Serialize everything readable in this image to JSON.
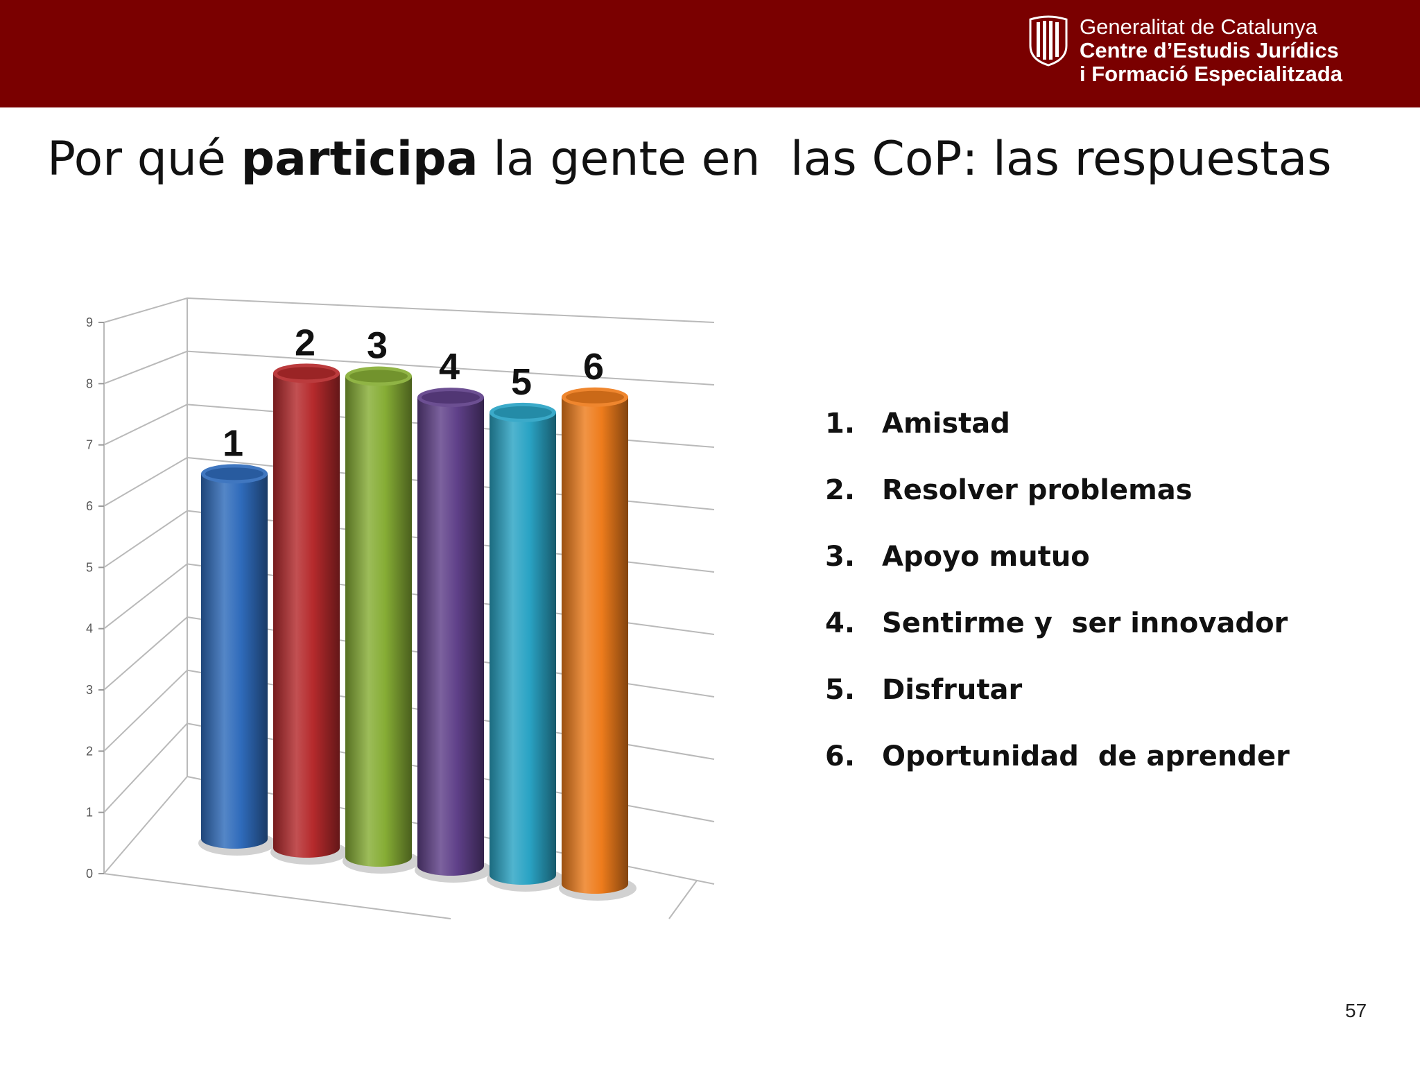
{
  "header": {
    "org_line1": "Generalitat de Catalunya",
    "org_line2": "Centre d’Estudis Jurídics",
    "org_line3": "i Formació Especialitzada",
    "header_color": "#7a0000"
  },
  "title": {
    "prefix": "Por qué ",
    "bold": "participa",
    "suffix": " la gente en  las CoP: las respuestas"
  },
  "chart_data": {
    "type": "bar",
    "style": "3d-cylinder",
    "categories": [
      "1",
      "2",
      "3",
      "4",
      "5",
      "6"
    ],
    "values": [
      6.0,
      7.8,
      7.9,
      7.7,
      7.6,
      8.0
    ],
    "colors": [
      "#2f6bbb",
      "#b52a2c",
      "#86ad35",
      "#5f4089",
      "#2aa3c4",
      "#ee7c1c"
    ],
    "yticks": [
      "0",
      "1",
      "2",
      "3",
      "4",
      "5",
      "6",
      "7",
      "8",
      "9"
    ],
    "ylim": [
      0,
      9
    ],
    "grid": true,
    "title": "",
    "xlabel": "",
    "ylabel": ""
  },
  "legend": [
    {
      "num": "1.",
      "label": "Amistad"
    },
    {
      "num": "2.",
      "label": "Resolver problemas"
    },
    {
      "num": "3.",
      "label": "Apoyo mutuo"
    },
    {
      "num": "4.",
      "label": "Sentirme y  ser innovador"
    },
    {
      "num": "5.",
      "label": "Disfrutar"
    },
    {
      "num": "6.",
      "label": "Oportunidad  de aprender"
    }
  ],
  "page_number": "57"
}
